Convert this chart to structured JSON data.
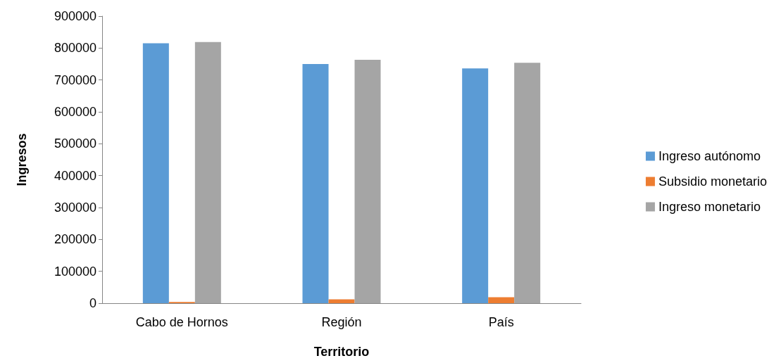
{
  "chart_data": {
    "type": "bar",
    "xlabel": "Territorio",
    "ylabel": "Ingresos",
    "categories": [
      "Cabo de Hornos",
      "Región",
      "País"
    ],
    "series": [
      {
        "name": "Ingreso autónomo",
        "color": "#5b9bd5",
        "values": [
          815000,
          750000,
          736000
        ]
      },
      {
        "name": "Subsidio monetario",
        "color": "#ed7d31",
        "values": [
          4000,
          12000,
          19000
        ]
      },
      {
        "name": "Ingreso monetario",
        "color": "#a5a5a5",
        "values": [
          819000,
          763000,
          754000
        ]
      }
    ],
    "ylim": [
      0,
      900000
    ],
    "yticks": [
      0,
      100000,
      200000,
      300000,
      400000,
      500000,
      600000,
      700000,
      800000,
      900000
    ],
    "grid": false,
    "legend": "right"
  }
}
